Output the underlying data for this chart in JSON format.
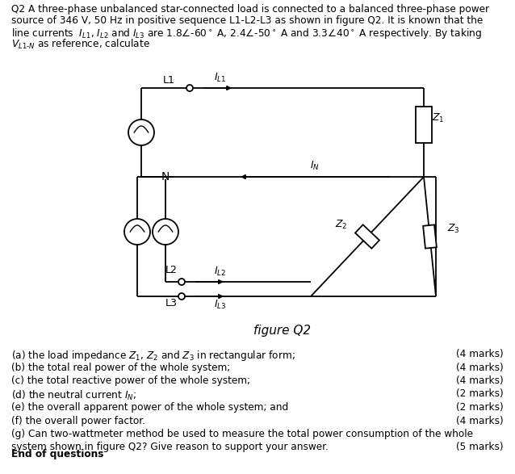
{
  "bg_color": "#ffffff",
  "fig_width": 6.38,
  "fig_height": 5.87,
  "figure_caption": "figure Q2",
  "stem_lines": [
    "Q2 A three-phase unbalanced star-connected load is connected to a balanced three-phase power",
    "source of 346 V, 50 Hz in positive sequence L1-L2-L3 as shown in figure Q2. It is known that the",
    "line currents  $I_{L1}$, $I_{L2}$ and $I_{L3}$ are 1.8$\\angle$-60$^\\circ$ A, 2.4$\\angle$-50$^\\circ$ A and 3.3$\\angle$40$^\\circ$ A respectively. By taking",
    "$V_{L1\\text{-}N}$ as reference, calculate"
  ],
  "questions": [
    [
      "(a) the load impedance $Z_1$, $Z_2$ and $Z_3$ in rectangular form;",
      "(4 marks)"
    ],
    [
      "(b) the total real power of the whole system;",
      "(4 marks)"
    ],
    [
      "(c) the total reactive power of the whole system;",
      "(4 marks)"
    ],
    [
      "(d) the neutral current $I_N$;",
      "(2 marks)"
    ],
    [
      "(e) the overall apparent power of the whole system; and",
      "(2 marks)"
    ],
    [
      "(f) the overall power factor.",
      "(4 marks)"
    ]
  ],
  "q_g_line1": "(g) Can two-wattmeter method be used to measure the total power consumption of the whole",
  "q_g_line2": "system shown in figure Q2? Give reason to support your answer.",
  "q_g_marks": "(5 marks)",
  "end_text": "End of questions"
}
